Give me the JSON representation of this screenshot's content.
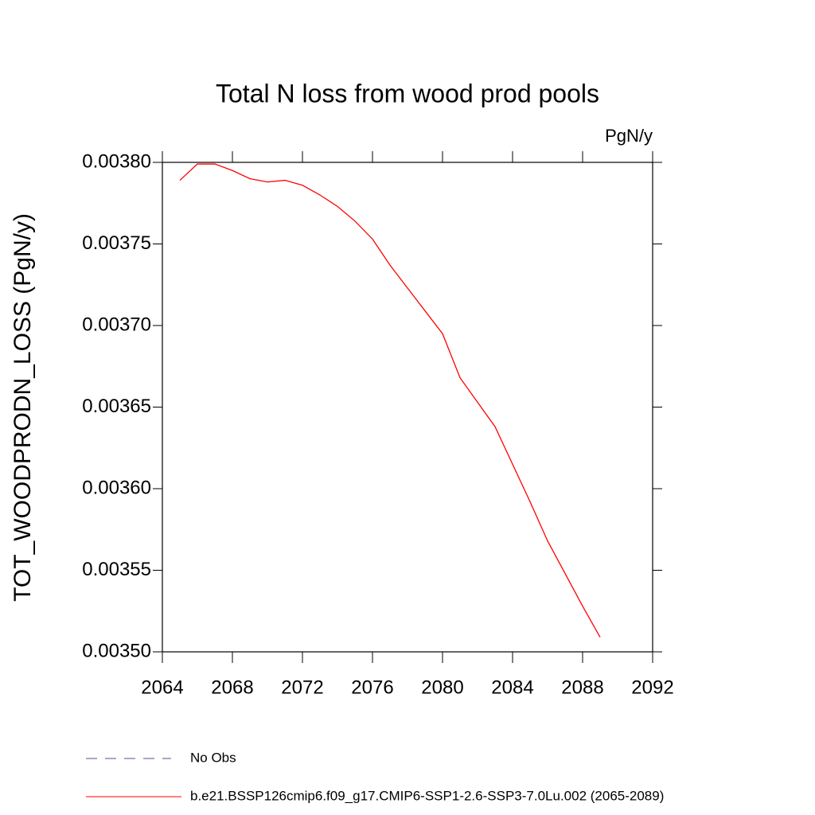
{
  "chart_data": {
    "type": "line",
    "title": "Total N loss from wood prod pools",
    "units": "PgN/y",
    "y_label": "TOT_WOODPRODN_LOSS  (PgN/y)",
    "x": [
      2065,
      2066,
      2067,
      2068,
      2069,
      2070,
      2071,
      2072,
      2073,
      2074,
      2075,
      2076,
      2077,
      2078,
      2079,
      2080,
      2081,
      2082,
      2083,
      2084,
      2085,
      2086,
      2087,
      2088,
      2089
    ],
    "series": [
      {
        "name": "No Obs",
        "color": "#5a4a9c",
        "dash": true,
        "values": [
          null,
          null,
          null,
          null,
          null,
          null,
          null,
          null,
          null,
          null,
          null,
          null,
          null,
          null,
          null,
          null,
          null,
          null,
          null,
          null,
          null,
          null,
          null,
          null,
          null
        ]
      },
      {
        "name": "b.e21.BSSP126cmip6.f09_g17.CMIP6-SSP1-2.6-SSP3-7.0Lu.002 (2065-2089)",
        "color": "#ff0000",
        "dash": false,
        "values": [
          0.003789,
          0.003799,
          0.003799,
          0.003795,
          0.00379,
          0.003788,
          0.003789,
          0.003786,
          0.00378,
          0.003773,
          0.003764,
          0.003753,
          0.003737,
          0.003723,
          0.003709,
          0.003695,
          0.003668,
          0.003653,
          0.003638,
          0.003615,
          0.003592,
          0.003568,
          0.003548,
          0.003528,
          0.003509
        ]
      }
    ],
    "xlim": [
      2064,
      2092
    ],
    "xticks": [
      2064,
      2068,
      2072,
      2076,
      2080,
      2084,
      2088,
      2092
    ],
    "ylim": [
      0.0035,
      0.0038
    ],
    "yticks": [
      {
        "value": 0.0035,
        "label": "0.00350"
      },
      0.00355,
      {
        "value": 0.0036,
        "label": "0.00360"
      },
      0.00365,
      {
        "value": 0.0037,
        "label": "0.00370"
      },
      0.00375,
      {
        "value": 0.0038,
        "label": "0.00380"
      }
    ],
    "grid": false
  }
}
